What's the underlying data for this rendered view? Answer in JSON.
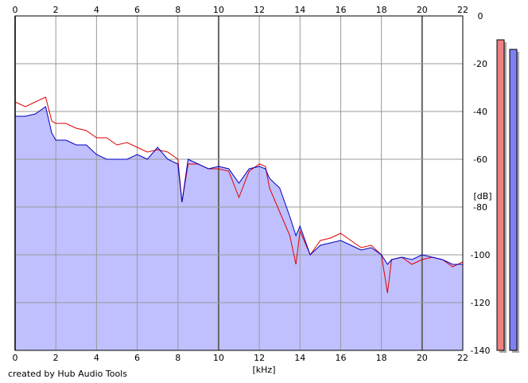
{
  "chart_data": {
    "type": "area",
    "title": "",
    "xlabel": "[kHz]",
    "ylabel": "[dB]",
    "xlim": [
      0,
      22
    ],
    "ylim": [
      -140,
      0
    ],
    "x_ticks": [
      0,
      2,
      4,
      6,
      8,
      10,
      12,
      14,
      16,
      18,
      20,
      22
    ],
    "y_ticks": [
      0,
      -20,
      -40,
      -60,
      -80,
      -100,
      -120,
      -140
    ],
    "x_tick_labels": [
      "0",
      "2",
      "4",
      "6",
      "8",
      "10",
      "12",
      "14",
      "16",
      "18",
      "20",
      "22"
    ],
    "y_tick_labels": [
      "0",
      "-20",
      "-40",
      "-60",
      "-80",
      "-100",
      "-120",
      "-140"
    ],
    "grid": true,
    "series": [
      {
        "color": "#e00000",
        "x": [
          0,
          0.5,
          1,
          1.5,
          1.8,
          2,
          2.5,
          3,
          3.5,
          4,
          4.5,
          5,
          5.5,
          6,
          6.5,
          7,
          7.5,
          8,
          8.2,
          8.5,
          9,
          9.5,
          10,
          10.5,
          11,
          11.5,
          12,
          12.3,
          12.5,
          13,
          13.5,
          13.8,
          14,
          14.5,
          15,
          15.5,
          16,
          16.5,
          17,
          17.5,
          18,
          18.3,
          18.5,
          19,
          19.5,
          20,
          20.5,
          21,
          21.5,
          22
        ],
        "y": [
          -36,
          -38,
          -36,
          -34,
          -44,
          -45,
          -45,
          -47,
          -48,
          -51,
          -51,
          -54,
          -53,
          -55,
          -57,
          -56,
          -57,
          -60,
          -78,
          -62,
          -62,
          -64,
          -64,
          -65,
          -76,
          -65,
          -62,
          -63,
          -72,
          -82,
          -92,
          -104,
          -90,
          -100,
          -94,
          -93,
          -91,
          -94,
          -97,
          -96,
          -100,
          -116,
          -102,
          -101,
          -104,
          -102,
          -101,
          -102,
          -105,
          -103
        ]
      },
      {
        "color": "#0000c0",
        "x": [
          0,
          0.5,
          1,
          1.5,
          1.8,
          2,
          2.5,
          3,
          3.5,
          4,
          4.5,
          5,
          5.5,
          6,
          6.5,
          7,
          7.5,
          8,
          8.2,
          8.5,
          9,
          9.5,
          10,
          10.5,
          11,
          11.5,
          12,
          12.3,
          12.5,
          13,
          13.5,
          13.8,
          14,
          14.5,
          15,
          15.5,
          16,
          16.5,
          17,
          17.5,
          18,
          18.3,
          18.5,
          19,
          19.5,
          20,
          20.5,
          21,
          21.5,
          22
        ],
        "y": [
          -42,
          -42,
          -41,
          -38,
          -49,
          -52,
          -52,
          -54,
          -54,
          -58,
          -60,
          -60,
          -60,
          -58,
          -60,
          -55,
          -60,
          -62,
          -78,
          -60,
          -62,
          -64,
          -63,
          -64,
          -70,
          -64,
          -63,
          -64,
          -68,
          -72,
          -84,
          -92,
          -88,
          -100,
          -96,
          -95,
          -94,
          -96,
          -98,
          -97,
          -100,
          -104,
          -102,
          -101,
          -102,
          -100,
          -101,
          -102,
          -104,
          -104
        ]
      }
    ],
    "level_meters": [
      {
        "color": "#f08080",
        "value": -10
      },
      {
        "color": "#8080f0",
        "value": -14
      }
    ]
  },
  "footer": {
    "credit": "created by Hub Audio Tools"
  }
}
